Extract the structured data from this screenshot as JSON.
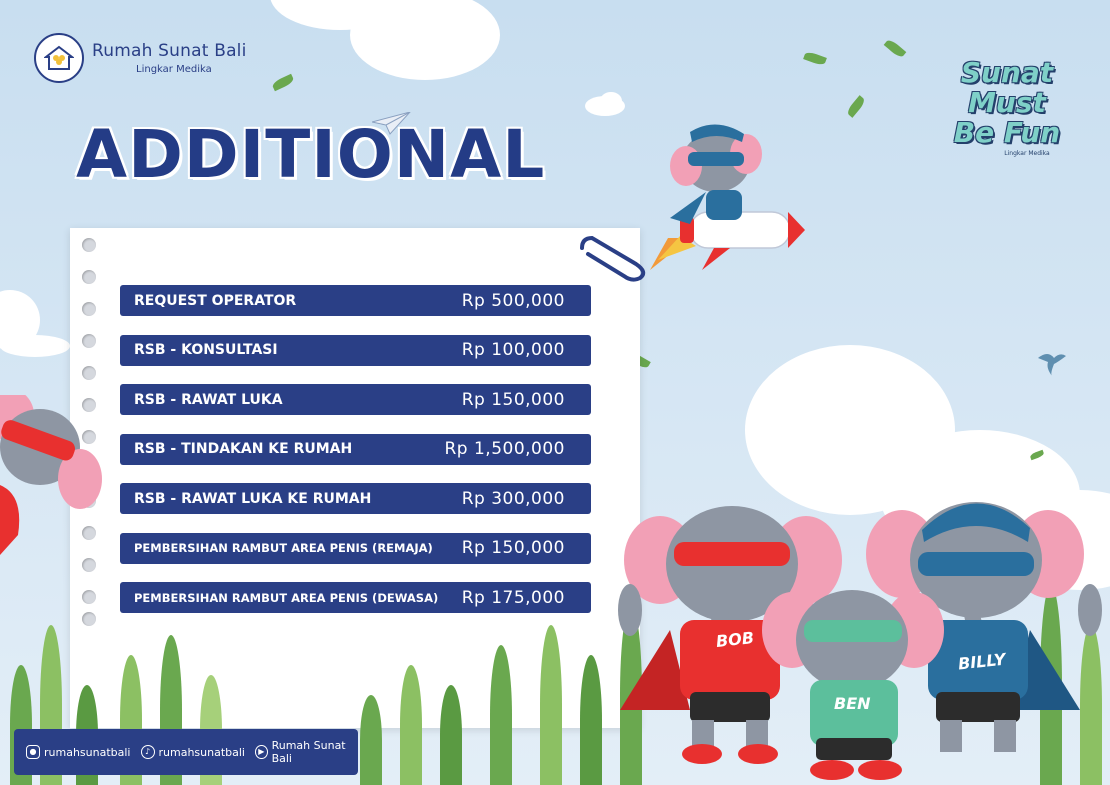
{
  "brand": {
    "name": "Rumah Sunat Bali",
    "sub": "Lingkar Medika"
  },
  "title": "ADDITIONAL",
  "badge": {
    "lines": [
      "Sunat",
      "Must",
      "Be Fun"
    ],
    "sub": "Lingkar Medika"
  },
  "price_list": [
    {
      "label": "REQUEST OPERATOR",
      "price": "Rp 500,000"
    },
    {
      "label": "RSB - KONSULTASI",
      "price": "Rp 100,000"
    },
    {
      "label": "RSB - RAWAT LUKA",
      "price": "Rp 150,000"
    },
    {
      "label": "RSB - TINDAKAN KE RUMAH",
      "price": "Rp 1,500,000"
    },
    {
      "label": "RSB - RAWAT LUKA KE RUMAH",
      "price": "Rp 300,000"
    },
    {
      "label": "PEMBERSIHAN RAMBUT AREA PENIS (REMAJA)",
      "price": "Rp 150,000"
    },
    {
      "label": "PEMBERSIHAN RAMBUT AREA PENIS (DEWASA)",
      "price": "Rp 175,000"
    }
  ],
  "mascots": {
    "red": "BOB",
    "green": "BEN",
    "blue": "BILLY"
  },
  "social": [
    {
      "icon": "instagram-icon",
      "text": "rumahsunatbali"
    },
    {
      "icon": "tiktok-icon",
      "text": "rumahsunatbali"
    },
    {
      "icon": "youtube-icon",
      "text": "Rumah Sunat Bali"
    }
  ],
  "colors": {
    "navy": "#2a3f86",
    "sky": "#c8def0",
    "grass": "#6aa84f",
    "mascot_red": "#e8302f",
    "mascot_green": "#5cbf9c",
    "mascot_blue": "#2a6f9e"
  }
}
